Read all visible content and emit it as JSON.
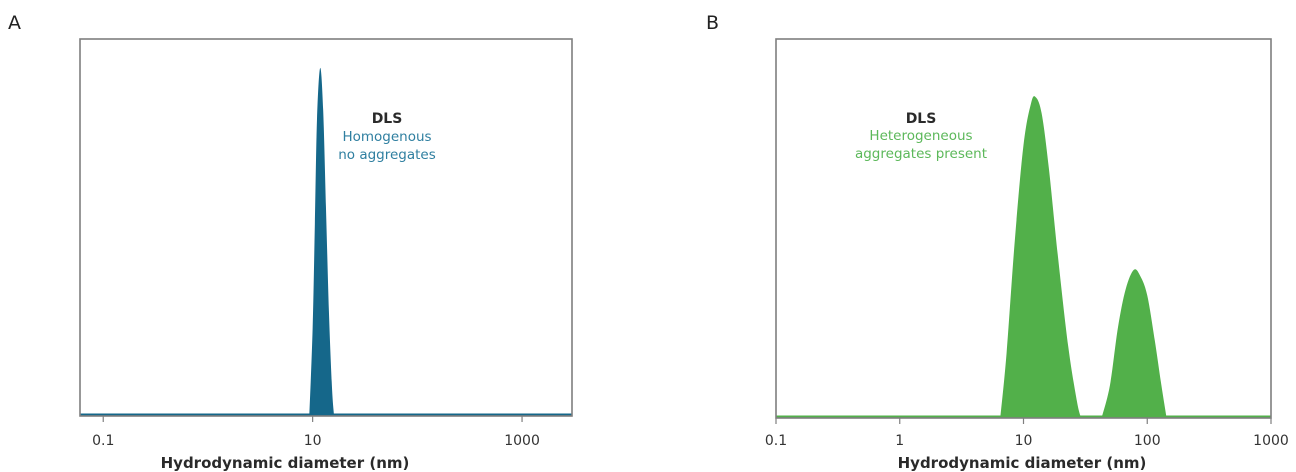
{
  "chart_data": [
    {
      "type": "area",
      "panel_label": "A",
      "xlabel": "Hydrodynamic diameter (nm)",
      "ylabel": "",
      "xscale": "log",
      "xlim": [
        0.06,
        3000
      ],
      "x_ticks": [
        0.1,
        10,
        1000
      ],
      "x_tick_labels": [
        "0.1",
        "10",
        "1000"
      ],
      "ylim": [
        0,
        1
      ],
      "grid": false,
      "color": "#15678a",
      "annotation": {
        "title": "DLS",
        "lines": [
          "Homogenous",
          "no aggregates"
        ]
      },
      "series": [
        {
          "points": [
            [
              9.3,
              0
            ],
            [
              10,
              0.25
            ],
            [
              10.5,
              0.55
            ],
            [
              11,
              0.85
            ],
            [
              11.8,
              1.0
            ],
            [
              12.6,
              0.88
            ],
            [
              13.4,
              0.6
            ],
            [
              14.3,
              0.3
            ],
            [
              15.3,
              0.08
            ],
            [
              16,
              0
            ]
          ]
        }
      ]
    },
    {
      "type": "area",
      "panel_label": "B",
      "xlabel": "Hydrodynamic diameter (nm)",
      "ylabel": "",
      "xscale": "log",
      "xlim": [
        0.1,
        1000
      ],
      "x_ticks": [
        0.1,
        1,
        10,
        100,
        1000
      ],
      "x_tick_labels": [
        "0.1",
        "1",
        "10",
        "100",
        "1000"
      ],
      "ylim": [
        0,
        1
      ],
      "grid": false,
      "color": "#52b04a",
      "annotation": {
        "title": "DLS",
        "lines": [
          "Heterogeneous",
          "aggregates present"
        ]
      },
      "series": [
        {
          "points": [
            [
              6.5,
              0
            ],
            [
              7.3,
              0.2
            ],
            [
              8.5,
              0.55
            ],
            [
              10,
              0.85
            ],
            [
              11.5,
              0.98
            ],
            [
              12.5,
              1.0
            ],
            [
              14,
              0.95
            ],
            [
              16,
              0.78
            ],
            [
              19,
              0.5
            ],
            [
              23,
              0.22
            ],
            [
              27,
              0.05
            ],
            [
              29,
              0
            ]
          ]
        },
        {
          "points": [
            [
              43,
              0
            ],
            [
              50,
              0.1
            ],
            [
              58,
              0.28
            ],
            [
              67,
              0.4
            ],
            [
              78,
              0.46
            ],
            [
              88,
              0.44
            ],
            [
              100,
              0.38
            ],
            [
              115,
              0.24
            ],
            [
              130,
              0.1
            ],
            [
              143,
              0
            ]
          ]
        }
      ]
    }
  ]
}
